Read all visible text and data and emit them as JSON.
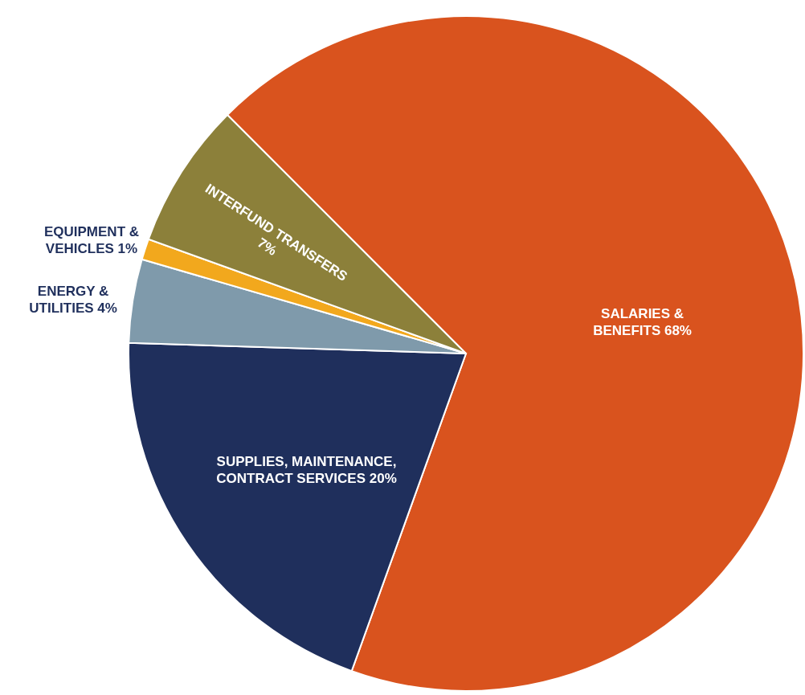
{
  "chart_data": {
    "type": "pie",
    "categories": [
      "SALARIES & BENEFITS",
      "SUPPLIES, MAINTENANCE, CONTRACT SERVICES",
      "ENERGY & UTILITIES",
      "EQUIPMENT & VEHICLES",
      "INTERFUND TRANSFERS"
    ],
    "values": [
      68,
      20,
      4,
      1,
      7
    ],
    "value_labels": [
      "68%",
      "20%",
      "4%",
      "1%",
      "7%"
    ],
    "colors": [
      "#d9531e",
      "#1f2f5c",
      "#7f9aab",
      "#f2a81d",
      "#8c803a"
    ]
  }
}
